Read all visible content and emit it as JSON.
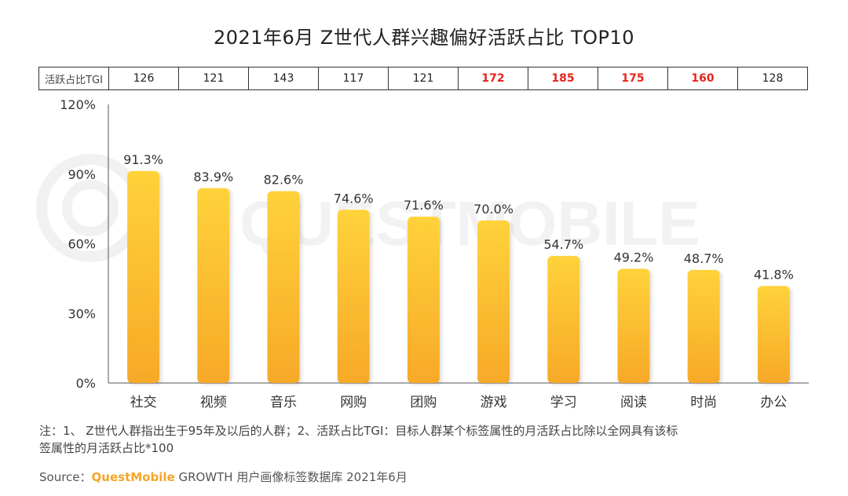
{
  "title": "2021年6月 Z世代人群兴趣偏好活跃占比 TOP10",
  "tgi_row": {
    "label": "活跃占比TGI",
    "values": [
      "126",
      "121",
      "143",
      "117",
      "121",
      "172",
      "185",
      "175",
      "160",
      "128"
    ],
    "highlight": [
      false,
      false,
      false,
      false,
      false,
      true,
      true,
      true,
      true,
      false
    ],
    "highlight_color": "#e8231b"
  },
  "watermark": "QUESTMOBILE",
  "chart_data": {
    "type": "bar",
    "title": "2021年6月 Z世代人群兴趣偏好活跃占比 TOP10",
    "categories": [
      "社交",
      "视频",
      "音乐",
      "网购",
      "团购",
      "游戏",
      "学习",
      "阅读",
      "时尚",
      "办公"
    ],
    "values": [
      91.3,
      83.9,
      82.6,
      74.6,
      71.6,
      70.0,
      54.7,
      49.2,
      48.7,
      41.8
    ],
    "value_labels": [
      "91.3%",
      "83.9%",
      "82.6%",
      "74.6%",
      "71.6%",
      "70.0%",
      "54.7%",
      "49.2%",
      "48.7%",
      "41.8%"
    ],
    "ylim": [
      0,
      120
    ],
    "yticks": [
      0,
      30,
      60,
      90,
      120
    ],
    "ytick_labels": [
      "0%",
      "30%",
      "60%",
      "90%",
      "120%"
    ],
    "xlabel": "",
    "ylabel": "",
    "bar_color_top": "#ffd23a",
    "bar_color_bottom": "#f7a928"
  },
  "note_line1": "注：1、 Z世代人群指出生于95年及以后的人群；2、活跃占比TGI：目标人群某个标签属性的月活跃占比除以全网具有该标",
  "note_line2": "签属性的月活跃占比*100",
  "source": {
    "label": "Source：",
    "brand": "QuestMobile",
    "rest": " GROWTH 用户画像标签数据库 2021年6月"
  }
}
